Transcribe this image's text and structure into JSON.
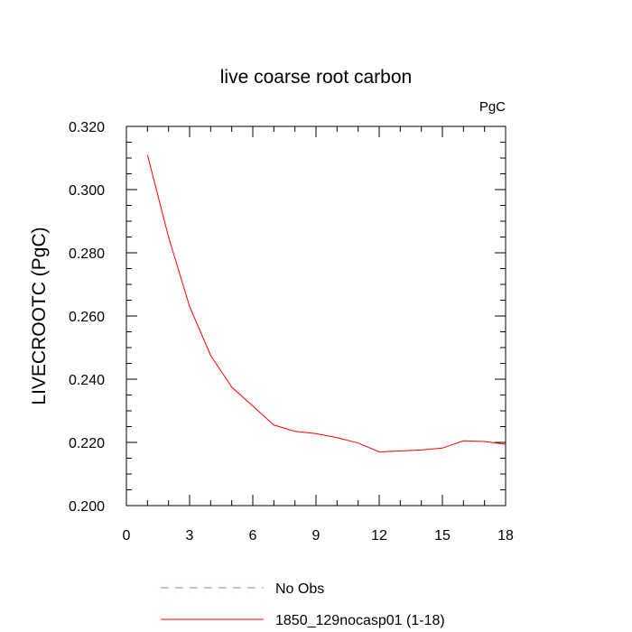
{
  "chart_data": {
    "type": "line",
    "title": "live coarse root carbon",
    "units": "PgC",
    "xlabel": "",
    "ylabel": "LIVECROOTC  (PgC)",
    "xlim": [
      0,
      18
    ],
    "ylim": [
      0.2,
      0.32
    ],
    "xticks": [
      0,
      3,
      6,
      9,
      12,
      15,
      18
    ],
    "xtick_labels": [
      "0",
      "3",
      "6",
      "9",
      "12",
      "15",
      "18"
    ],
    "yticks": [
      0.2,
      0.22,
      0.24,
      0.26,
      0.28,
      0.3,
      0.32
    ],
    "ytick_labels": [
      "0.200",
      "0.220",
      "0.240",
      "0.260",
      "0.280",
      "0.300",
      "0.320"
    ],
    "grid": false,
    "legend_position": "bottom",
    "series": [
      {
        "name": "1850_129nocasp01 (1-18)",
        "color": "#ff0000",
        "dash": "solid",
        "x": [
          1,
          2,
          3,
          4,
          5,
          6,
          7,
          8,
          9,
          10,
          11,
          12,
          13,
          14,
          15,
          16,
          17,
          18
        ],
        "y": [
          0.311,
          0.285,
          0.263,
          0.2475,
          0.2375,
          0.2315,
          0.2255,
          0.2235,
          0.2228,
          0.2215,
          0.2198,
          0.217,
          0.2173,
          0.2176,
          0.2182,
          0.2205,
          0.2203,
          0.2194
        ]
      }
    ],
    "legend": [
      {
        "label": "No Obs",
        "color": "#8080ff",
        "dash": "dashed"
      },
      {
        "label": "1850_129nocasp01 (1-18)",
        "color": "#ff0000",
        "dash": "solid"
      }
    ]
  }
}
